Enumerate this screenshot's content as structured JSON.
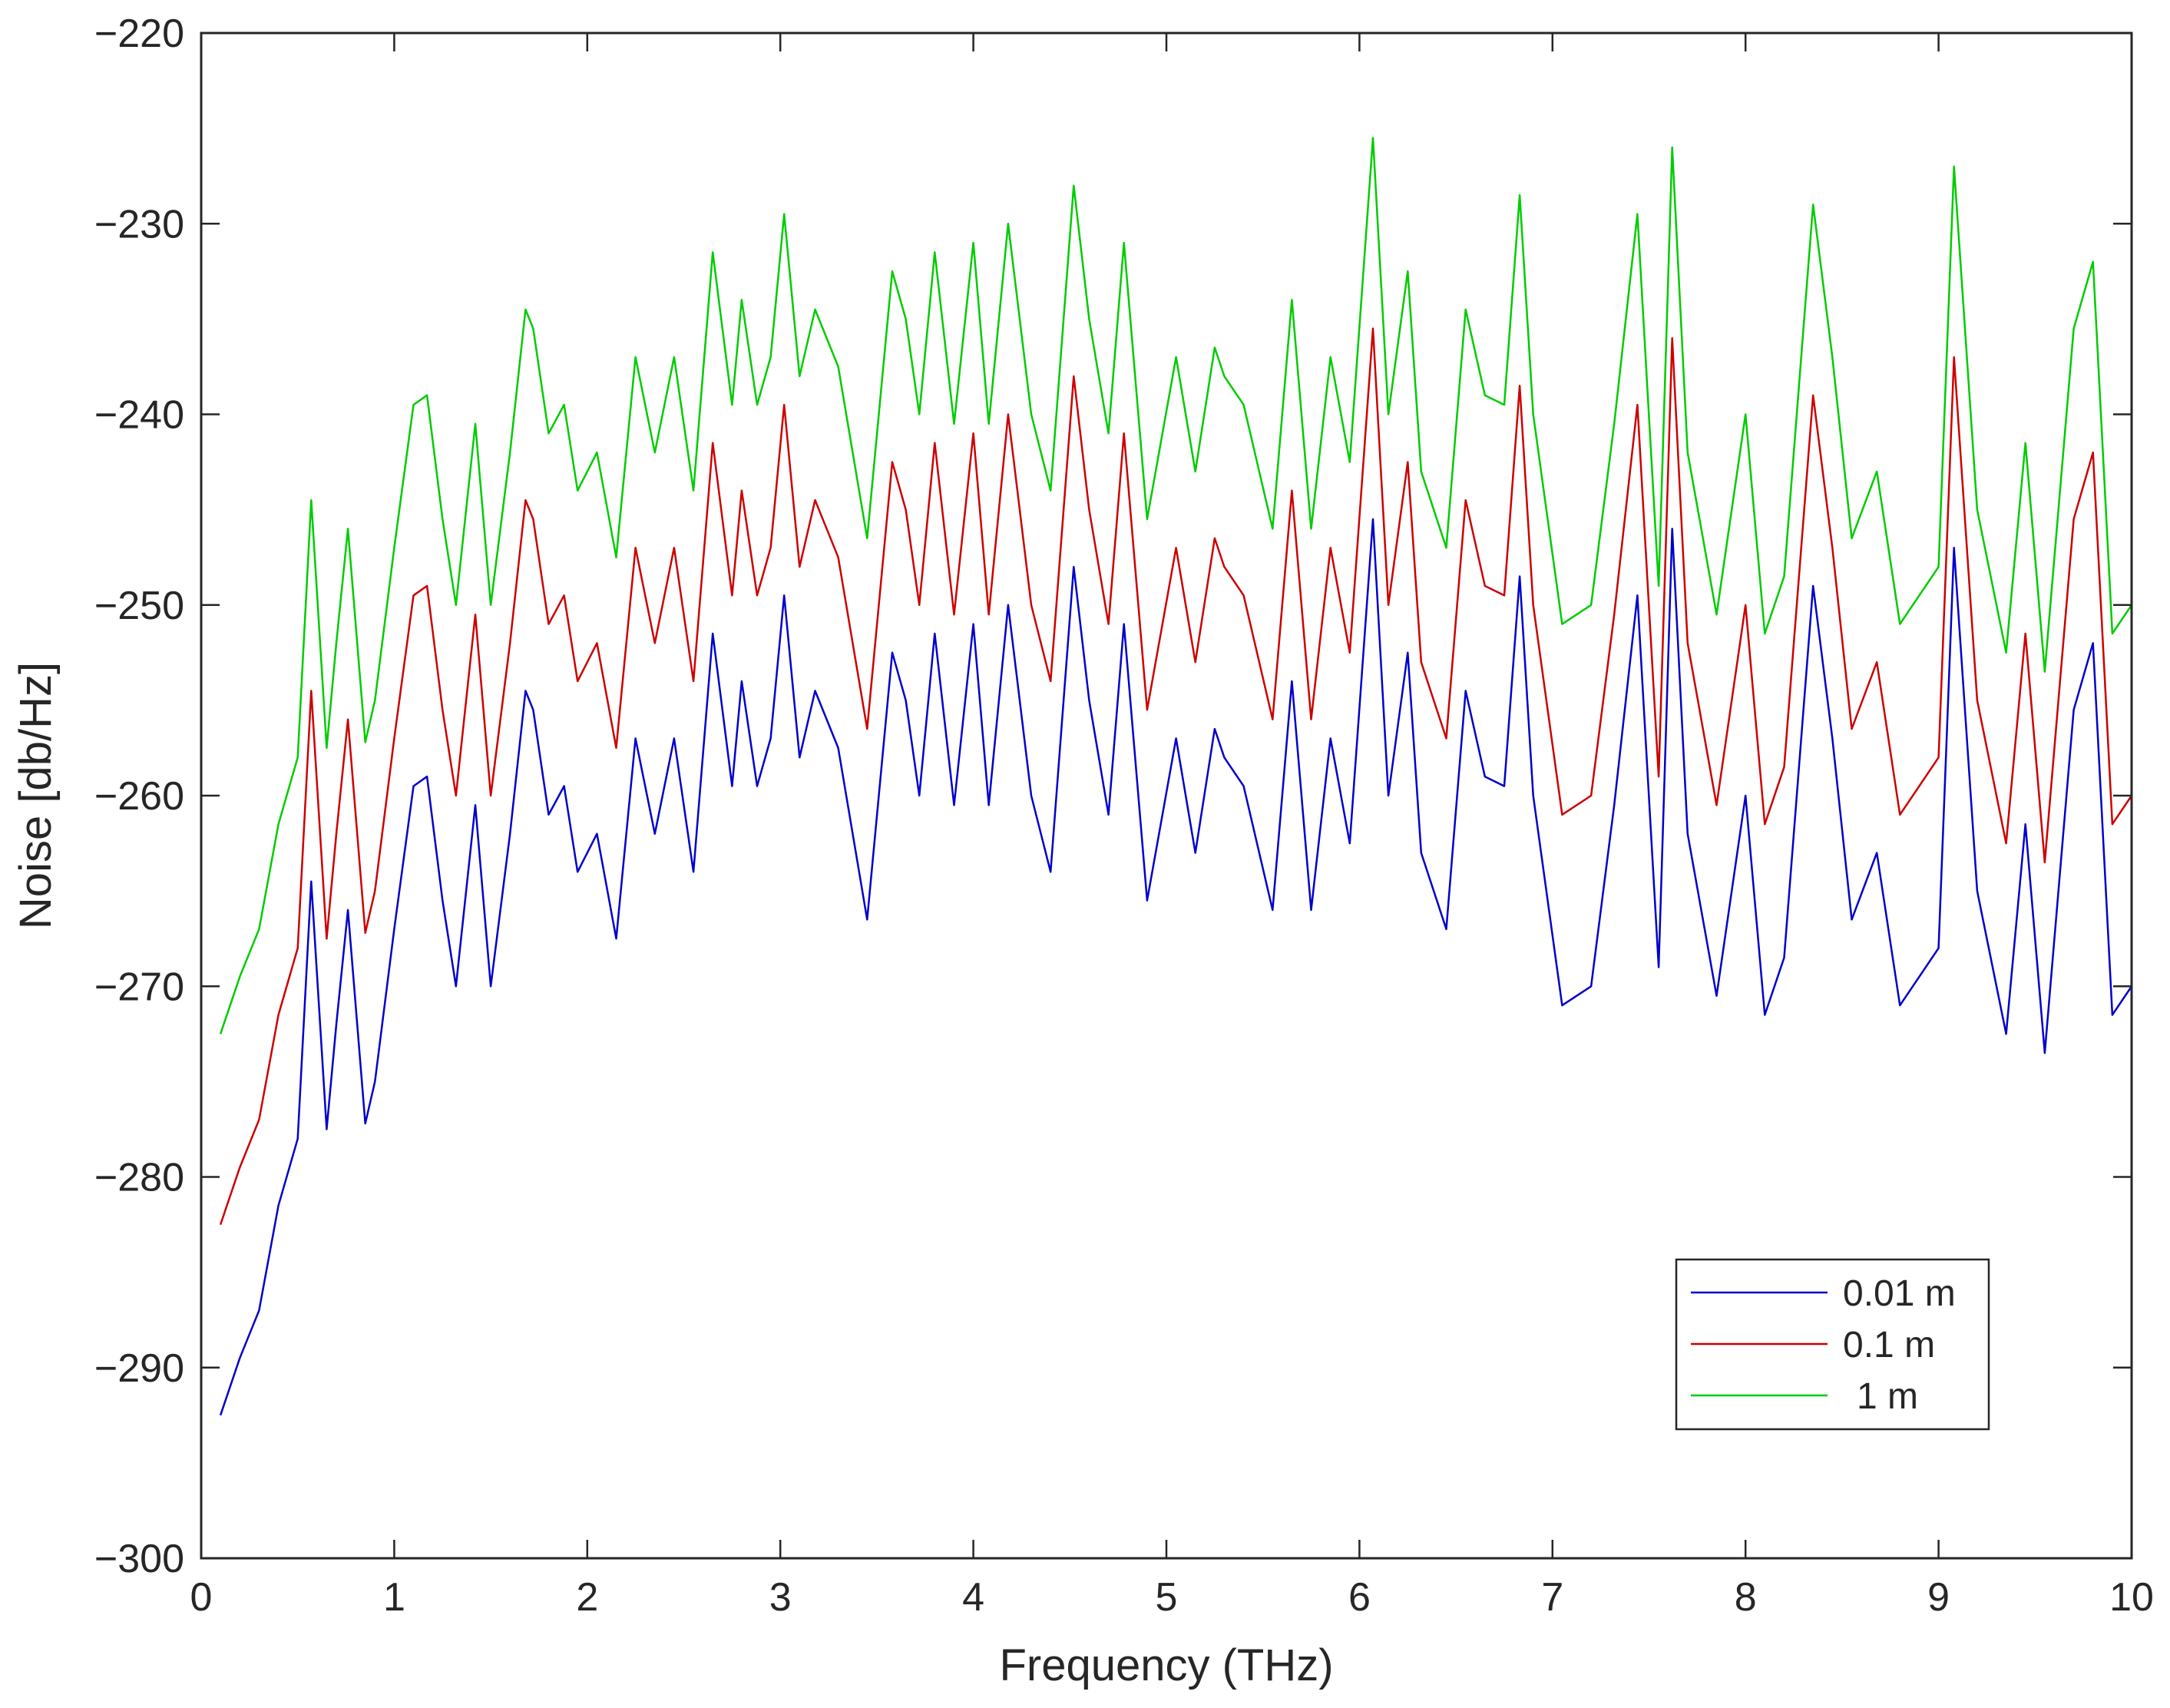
{
  "chart_data": {
    "type": "line",
    "title": "",
    "xlabel": "Frequency (THz)",
    "ylabel": "Noise [db/Hz]",
    "xlim": [
      0,
      10
    ],
    "ylim": [
      -300,
      -220
    ],
    "xticks": [
      0,
      1,
      2,
      3,
      4,
      5,
      6,
      7,
      8,
      9,
      10
    ],
    "yticks": [
      -300,
      -290,
      -280,
      -270,
      -260,
      -250,
      -240,
      -230,
      -220
    ],
    "grid": false,
    "legend_position": "bottom-right",
    "x": [
      0.1,
      0.2,
      0.3,
      0.4,
      0.5,
      0.57,
      0.65,
      0.7,
      0.76,
      0.85,
      0.9,
      1.0,
      1.1,
      1.17,
      1.25,
      1.32,
      1.42,
      1.5,
      1.6,
      1.68,
      1.72,
      1.8,
      1.88,
      1.95,
      2.05,
      2.15,
      2.25,
      2.35,
      2.45,
      2.55,
      2.65,
      2.75,
      2.8,
      2.88,
      2.95,
      3.02,
      3.1,
      3.18,
      3.3,
      3.45,
      3.58,
      3.65,
      3.72,
      3.8,
      3.9,
      4.0,
      4.08,
      4.18,
      4.3,
      4.4,
      4.52,
      4.6,
      4.7,
      4.78,
      4.9,
      5.05,
      5.15,
      5.25,
      5.3,
      5.4,
      5.55,
      5.65,
      5.75,
      5.85,
      5.95,
      6.07,
      6.15,
      6.25,
      6.32,
      6.45,
      6.55,
      6.65,
      6.75,
      6.83,
      6.9,
      7.05,
      7.2,
      7.32,
      7.44,
      7.55,
      7.62,
      7.7,
      7.85,
      8.0,
      8.1,
      8.2,
      8.35,
      8.45,
      8.55,
      8.68,
      8.8,
      9.0,
      9.08,
      9.2,
      9.35,
      9.45,
      9.55,
      9.7,
      9.8,
      9.9,
      10.0
    ],
    "series": [
      {
        "name": "0.01 m",
        "color": "#0000cc",
        "values": [
          -292.5,
          -289.5,
          -287,
          -281.5,
          -278,
          -264.5,
          -277.5,
          -272,
          -266,
          -277.2,
          -275,
          -267,
          -259.5,
          -259,
          -265.5,
          -270,
          -260.5,
          -270,
          -262,
          -254.5,
          -255.5,
          -261,
          -259.5,
          -264,
          -262,
          -267.5,
          -257,
          -262,
          -257,
          -264,
          -251.5,
          -259.5,
          -254,
          -259.5,
          -257,
          -249.5,
          -258,
          -254.5,
          -257.5,
          -266.5,
          -252.5,
          -255,
          -260,
          -251.5,
          -260.5,
          -251,
          -260.5,
          -250,
          -260,
          -264,
          -248,
          -255,
          -261,
          -251,
          -265.5,
          -257,
          -263,
          -256.5,
          -258,
          -259.5,
          -266,
          -254,
          -266,
          -257,
          -262.5,
          -245.5,
          -260,
          -252.5,
          -263,
          -267,
          -254.5,
          -259,
          -259.5,
          -248.5,
          -260,
          -271,
          -270,
          -260.5,
          -249.5,
          -269,
          -246,
          -262,
          -270.5,
          -260,
          -271.5,
          -268.5,
          -249,
          -257,
          -266.5,
          -263,
          -271,
          -268,
          -247,
          -265,
          -272.5,
          -261.5,
          -273.5,
          -255.5,
          -252,
          -271.5,
          -270
        ]
      },
      {
        "name": "0.1 m",
        "color": "#cc0000",
        "values": [
          -282.5,
          -279.5,
          -277,
          -271.5,
          -268,
          -254.5,
          -267.5,
          -262,
          -256,
          -267.2,
          -265,
          -257,
          -249.5,
          -249,
          -255.5,
          -260,
          -250.5,
          -260,
          -252,
          -244.5,
          -245.5,
          -251,
          -249.5,
          -254,
          -252,
          -257.5,
          -247,
          -252,
          -247,
          -254,
          -241.5,
          -249.5,
          -244,
          -249.5,
          -247,
          -239.5,
          -248,
          -244.5,
          -247.5,
          -256.5,
          -242.5,
          -245,
          -250,
          -241.5,
          -250.5,
          -241,
          -250.5,
          -240,
          -250,
          -254,
          -238,
          -245,
          -251,
          -241,
          -255.5,
          -247,
          -253,
          -246.5,
          -248,
          -249.5,
          -256,
          -244,
          -256,
          -247,
          -252.5,
          -235.5,
          -250,
          -242.5,
          -253,
          -257,
          -244.5,
          -249,
          -249.5,
          -238.5,
          -250,
          -261,
          -260,
          -250.5,
          -239.5,
          -259,
          -236,
          -252,
          -260.5,
          -250,
          -261.5,
          -258.5,
          -239,
          -247,
          -256.5,
          -253,
          -261,
          -258,
          -237,
          -255,
          -262.5,
          -251.5,
          -263.5,
          -245.5,
          -242,
          -261.5,
          -260
        ]
      },
      {
        "name": "1 m",
        "color": "#00cc00",
        "values": [
          -272.5,
          -269.5,
          -267,
          -261.5,
          -258,
          -244.5,
          -257.5,
          -252,
          -246,
          -257.2,
          -255,
          -247,
          -239.5,
          -239,
          -245.5,
          -250,
          -240.5,
          -250,
          -242,
          -234.5,
          -235.5,
          -241,
          -239.5,
          -244,
          -242,
          -247.5,
          -237,
          -242,
          -237,
          -244,
          -231.5,
          -239.5,
          -234,
          -239.5,
          -237,
          -229.5,
          -238,
          -234.5,
          -237.5,
          -246.5,
          -232.5,
          -235,
          -240,
          -231.5,
          -240.5,
          -231,
          -240.5,
          -230,
          -240,
          -244,
          -228,
          -235,
          -241,
          -231,
          -245.5,
          -237,
          -243,
          -236.5,
          -238,
          -239.5,
          -246,
          -234,
          -246,
          -237,
          -242.5,
          -225.5,
          -240,
          -232.5,
          -243,
          -247,
          -234.5,
          -239,
          -239.5,
          -228.5,
          -240,
          -251,
          -250,
          -240.5,
          -229.5,
          -249,
          -226,
          -242,
          -250.5,
          -240,
          -251.5,
          -248.5,
          -229,
          -237,
          -246.5,
          -243,
          -251,
          -248,
          -227,
          -245,
          -252.5,
          -241.5,
          -253.5,
          -235.5,
          -232,
          -251.5,
          -250
        ]
      }
    ]
  }
}
